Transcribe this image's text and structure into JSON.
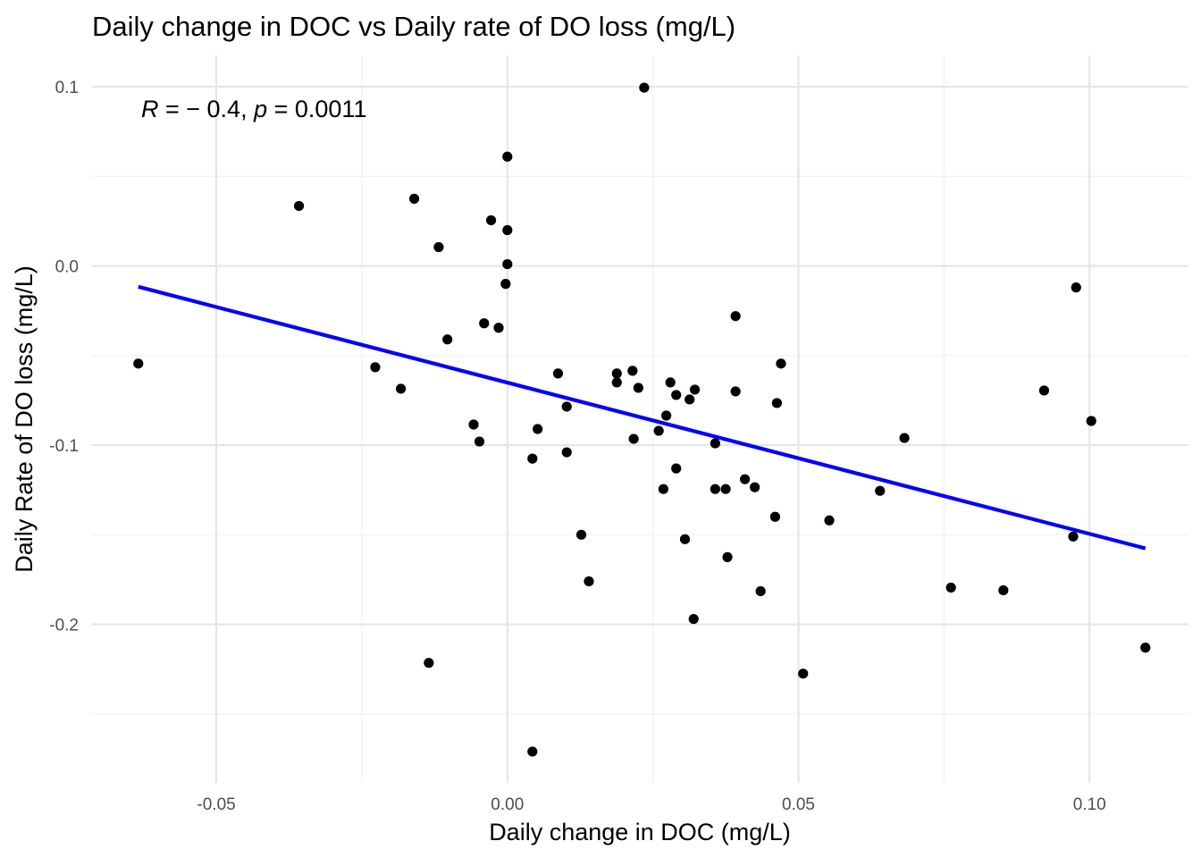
{
  "chart_data": {
    "type": "scatter",
    "title": "Daily change in DOC vs Daily rate of DO loss (mg/L)",
    "xlabel": "Daily change in DOC (mg/L)",
    "ylabel": "Daily Rate of DO loss (mg/L)",
    "xlim": [
      -0.0715,
      0.117
    ],
    "ylim": [
      -0.2885,
      0.1175
    ],
    "x_ticks": [
      -0.05,
      0.0,
      0.05,
      0.1
    ],
    "x_tick_labels": [
      "-0.05",
      "0.00",
      "0.05",
      "0.10"
    ],
    "y_ticks": [
      -0.2,
      -0.1,
      0.0,
      0.1
    ],
    "y_tick_labels": [
      "-0.2",
      "-0.1",
      "0.0",
      "0.1"
    ],
    "grid": true,
    "annotation": {
      "r_label": "R",
      "r_value": " = − 0.4, ",
      "p_label": "p",
      "p_value": " = 0.0011"
    },
    "point_color": "#000000",
    "line_color": "#0000ff",
    "trendline": {
      "x": [
        -0.0634,
        0.1096
      ],
      "y": [
        -0.0116,
        -0.1576
      ]
    },
    "points": [
      {
        "x": -0.0634,
        "y": -0.0545
      },
      {
        "x": -0.0358,
        "y": 0.0335
      },
      {
        "x": -0.0227,
        "y": -0.0565
      },
      {
        "x": -0.0183,
        "y": -0.0685
      },
      {
        "x": -0.016,
        "y": 0.0375
      },
      {
        "x": -0.0135,
        "y": -0.2215
      },
      {
        "x": -0.0118,
        "y": 0.0105
      },
      {
        "x": -0.0103,
        "y": -0.041
      },
      {
        "x": -0.0058,
        "y": -0.0885
      },
      {
        "x": -0.0048,
        "y": -0.098
      },
      {
        "x": -0.004,
        "y": -0.032
      },
      {
        "x": -0.0028,
        "y": 0.0255
      },
      {
        "x": -0.0015,
        "y": -0.0345
      },
      {
        "x": -0.0003,
        "y": -0.01
      },
      {
        "x": 0.0,
        "y": 0.061
      },
      {
        "x": 0.0,
        "y": 0.02
      },
      {
        "x": 0.0,
        "y": 0.001
      },
      {
        "x": 0.0043,
        "y": -0.1075
      },
      {
        "x": 0.0043,
        "y": -0.271
      },
      {
        "x": 0.0052,
        "y": -0.091
      },
      {
        "x": 0.0087,
        "y": -0.06
      },
      {
        "x": 0.0102,
        "y": -0.0785
      },
      {
        "x": 0.0102,
        "y": -0.104
      },
      {
        "x": 0.0127,
        "y": -0.15
      },
      {
        "x": 0.014,
        "y": -0.176
      },
      {
        "x": 0.0188,
        "y": -0.06
      },
      {
        "x": 0.0188,
        "y": -0.065
      },
      {
        "x": 0.0215,
        "y": -0.0585
      },
      {
        "x": 0.0217,
        "y": -0.0965
      },
      {
        "x": 0.0225,
        "y": -0.068
      },
      {
        "x": 0.0235,
        "y": 0.0995
      },
      {
        "x": 0.026,
        "y": -0.092
      },
      {
        "x": 0.0268,
        "y": -0.1245
      },
      {
        "x": 0.0273,
        "y": -0.0835
      },
      {
        "x": 0.028,
        "y": -0.065
      },
      {
        "x": 0.029,
        "y": -0.072
      },
      {
        "x": 0.029,
        "y": -0.113
      },
      {
        "x": 0.0305,
        "y": -0.1525
      },
      {
        "x": 0.0313,
        "y": -0.0745
      },
      {
        "x": 0.032,
        "y": -0.197
      },
      {
        "x": 0.0322,
        "y": -0.069
      },
      {
        "x": 0.0357,
        "y": -0.099
      },
      {
        "x": 0.0357,
        "y": -0.1245
      },
      {
        "x": 0.0375,
        "y": -0.1245
      },
      {
        "x": 0.0378,
        "y": -0.1625
      },
      {
        "x": 0.0392,
        "y": -0.07
      },
      {
        "x": 0.0392,
        "y": -0.028
      },
      {
        "x": 0.0408,
        "y": -0.119
      },
      {
        "x": 0.0425,
        "y": -0.1235
      },
      {
        "x": 0.0435,
        "y": -0.1815
      },
      {
        "x": 0.046,
        "y": -0.14
      },
      {
        "x": 0.0463,
        "y": -0.0765
      },
      {
        "x": 0.047,
        "y": -0.0545
      },
      {
        "x": 0.0508,
        "y": -0.2275
      },
      {
        "x": 0.0553,
        "y": -0.142
      },
      {
        "x": 0.064,
        "y": -0.1255
      },
      {
        "x": 0.0682,
        "y": -0.096
      },
      {
        "x": 0.0762,
        "y": -0.1795
      },
      {
        "x": 0.0852,
        "y": -0.181
      },
      {
        "x": 0.0922,
        "y": -0.0695
      },
      {
        "x": 0.0972,
        "y": -0.151
      },
      {
        "x": 0.0977,
        "y": -0.012
      },
      {
        "x": 0.1003,
        "y": -0.0865
      },
      {
        "x": 0.1096,
        "y": -0.213
      }
    ]
  }
}
